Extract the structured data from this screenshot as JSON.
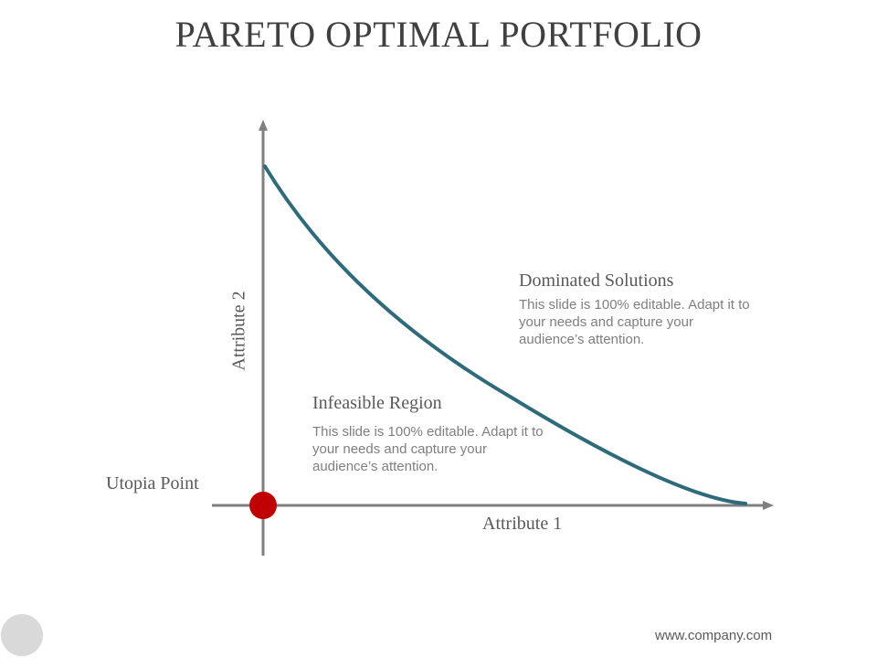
{
  "slide": {
    "title": "PARETO OPTIMAL PORTFOLIO",
    "footer_url": "www.company.com"
  },
  "diagram": {
    "x_axis_label": "Attribute 1",
    "y_axis_label": "Attribute 2",
    "utopia_label": "Utopia Point",
    "dominated": {
      "heading": "Dominated Solutions",
      "body": "This slide is 100% editable. Adapt it to your  needs and capture your audience’s attention."
    },
    "infeasible": {
      "heading": "Infeasible Region",
      "body": "This slide is 100% editable. Adapt it to your  needs and capture your audience’s attention."
    },
    "colors": {
      "curve": "#2e6b7a",
      "axis": "#7f7f7f",
      "utopia_point": "#c00000",
      "corner_circle": "#d9d9d9"
    }
  }
}
